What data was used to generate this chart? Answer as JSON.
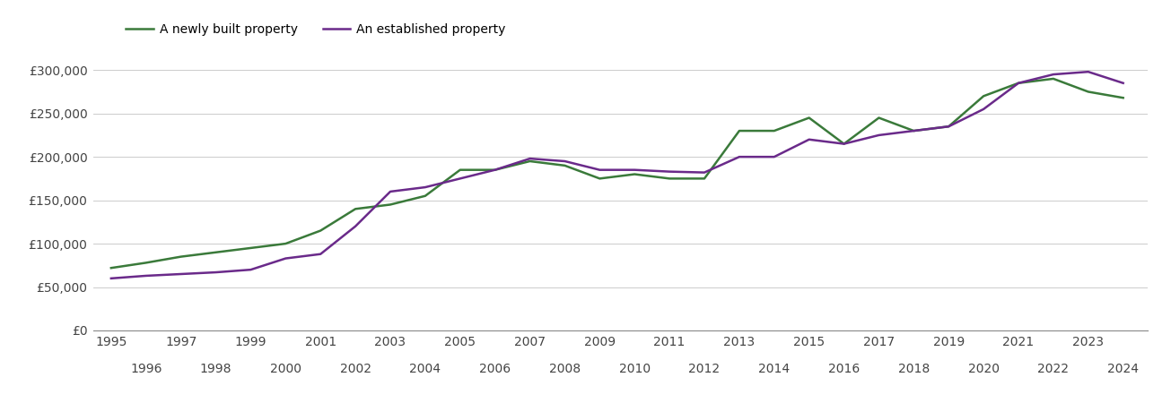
{
  "newly_built": {
    "years": [
      1995,
      1996,
      1997,
      1998,
      1999,
      2000,
      2001,
      2002,
      2003,
      2004,
      2005,
      2006,
      2007,
      2008,
      2009,
      2010,
      2011,
      2012,
      2013,
      2014,
      2015,
      2016,
      2017,
      2018,
      2019,
      2020,
      2021,
      2022,
      2023,
      2024
    ],
    "values": [
      72000,
      78000,
      85000,
      90000,
      95000,
      100000,
      115000,
      140000,
      145000,
      155000,
      185000,
      185000,
      195000,
      190000,
      175000,
      180000,
      175000,
      175000,
      230000,
      230000,
      245000,
      215000,
      245000,
      230000,
      235000,
      270000,
      285000,
      290000,
      275000,
      268000
    ]
  },
  "established": {
    "years": [
      1995,
      1996,
      1997,
      1998,
      1999,
      2000,
      2001,
      2002,
      2003,
      2004,
      2005,
      2006,
      2007,
      2008,
      2009,
      2010,
      2011,
      2012,
      2013,
      2014,
      2015,
      2016,
      2017,
      2018,
      2019,
      2020,
      2021,
      2022,
      2023,
      2024
    ],
    "values": [
      60000,
      63000,
      65000,
      67000,
      70000,
      83000,
      88000,
      120000,
      160000,
      165000,
      175000,
      185000,
      198000,
      195000,
      185000,
      185000,
      183000,
      182000,
      200000,
      200000,
      220000,
      215000,
      225000,
      230000,
      235000,
      255000,
      285000,
      295000,
      298000,
      285000
    ]
  },
  "newly_color": "#3a7a3a",
  "established_color": "#6a2a8a",
  "line_width": 1.8,
  "ylim": [
    0,
    325000
  ],
  "yticks": [
    0,
    50000,
    100000,
    150000,
    200000,
    250000,
    300000
  ],
  "ytick_labels": [
    "£0",
    "£50,000",
    "£100,000",
    "£150,000",
    "£200,000",
    "£250,000",
    "£300,000"
  ],
  "xtick_odd": [
    1995,
    1997,
    1999,
    2001,
    2003,
    2005,
    2007,
    2009,
    2011,
    2013,
    2015,
    2017,
    2019,
    2021,
    2023
  ],
  "xtick_even": [
    1996,
    1998,
    2000,
    2002,
    2004,
    2006,
    2008,
    2010,
    2012,
    2014,
    2016,
    2018,
    2020,
    2022,
    2024
  ],
  "legend_newly": "A newly built property",
  "legend_established": "An established property",
  "background_color": "#ffffff",
  "grid_color": "#cccccc",
  "xlim": [
    1994.5,
    2024.7
  ]
}
